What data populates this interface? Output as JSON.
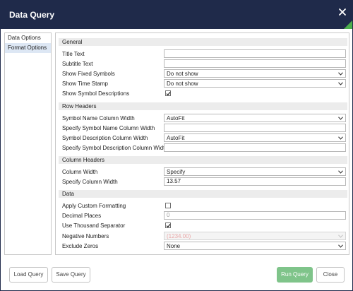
{
  "dialog": {
    "title": "Data Query"
  },
  "icons": {
    "close": "close-icon",
    "chevron": "chevron-down-icon",
    "check": "checkmark-icon"
  },
  "colors": {
    "titlebar": "#1f2a4a",
    "accent": "#4cae4c",
    "primary_button": "#7fc48a",
    "active_tab": "#dde7f4"
  },
  "sidebar": {
    "items": [
      {
        "label": "Data Options"
      },
      {
        "label": "Format Options"
      }
    ]
  },
  "sections": {
    "general": "General",
    "row_headers": "Row Headers",
    "column_headers": "Column Headers",
    "data": "Data"
  },
  "fields": {
    "title_text": {
      "label": "Title Text",
      "value": ""
    },
    "subtitle_text": {
      "label": "Subtitle Text",
      "value": ""
    },
    "show_fixed_symbols": {
      "label": "Show Fixed Symbols",
      "value": "Do not show"
    },
    "show_time_stamp": {
      "label": "Show Time Stamp",
      "value": "Do not show"
    },
    "show_symbol_descriptions": {
      "label": "Show Symbol Descriptions",
      "checked": true
    },
    "symbol_name_col_width": {
      "label": "Symbol Name Column Width",
      "value": "AutoFit"
    },
    "specify_symbol_name_col_width": {
      "label": "Specify Symbol Name Column Width",
      "value": ""
    },
    "symbol_desc_col_width": {
      "label": "Symbol Description Column Width",
      "value": "AutoFit"
    },
    "specify_symbol_desc_col_width": {
      "label": "Specify Symbol Description Column Width",
      "value": ""
    },
    "column_width": {
      "label": "Column Width",
      "value": "Specify"
    },
    "specify_column_width": {
      "label": "Specify Column Width",
      "value": "13.57"
    },
    "apply_custom_formatting": {
      "label": "Apply Custom Formatting",
      "checked": false
    },
    "decimal_places": {
      "label": "Decimal Places",
      "placeholder": "0"
    },
    "use_thousand_separator": {
      "label": "Use Thousand Separator",
      "checked": true
    },
    "negative_numbers": {
      "label": "Negative Numbers",
      "value": "(1234.00)"
    },
    "exclude_zeros": {
      "label": "Exclude Zeros",
      "value": "None"
    }
  },
  "footer": {
    "load_query": "Load Query",
    "save_query": "Save Query",
    "run_query": "Run Query",
    "close": "Close"
  }
}
